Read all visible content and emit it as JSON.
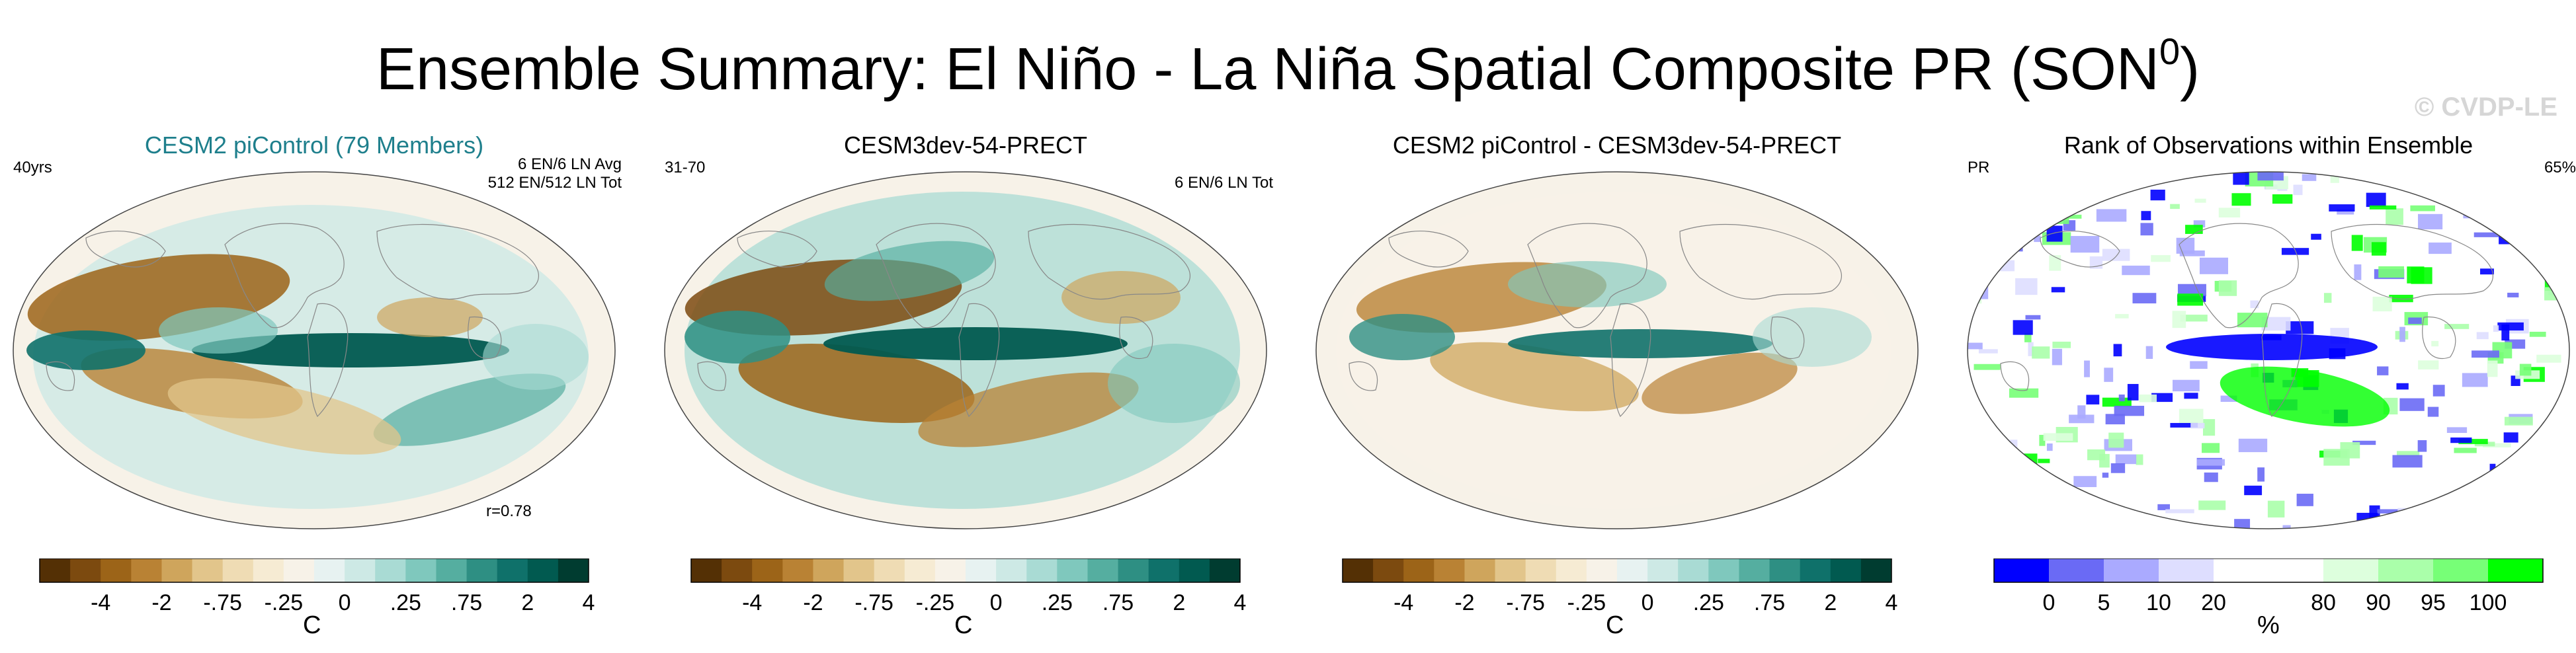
{
  "page": {
    "title": "Ensemble Summary: El Niño - La Niña Spatial Composite PR (SON",
    "title_sup": "0",
    "title_end": ")",
    "watermark": "© CVDP-LE"
  },
  "colors": {
    "brown_teal": [
      "#543005",
      "#7c4a0f",
      "#9c6418",
      "#b98234",
      "#cfa55c",
      "#e2c58b",
      "#efdcb4",
      "#f6ebd3",
      "#f7f2e8",
      "#e7f2f1",
      "#cde9e5",
      "#a9dbd4",
      "#7fc8bd",
      "#55aea0",
      "#2e8f83",
      "#0f716a",
      "#015a50",
      "#003c30"
    ],
    "rank": [
      "#0000ff",
      "#6a6af5",
      "#aaaaff",
      "#dedeff",
      "#ffffff",
      "#ffffff",
      "#ddffdd",
      "#aaffaa",
      "#77ff77",
      "#00ff00"
    ]
  },
  "panels": [
    {
      "title": "CESM2 piControl (79 Members)",
      "left_label": "40yrs",
      "right_label_1": "6 EN/6 LN Avg",
      "right_label_2": "512 EN/512 LN Tot",
      "bottom_label": "r=0.78",
      "colorbar_labels": [
        "-4",
        "-2",
        "-.75",
        "-.25",
        "0",
        ".25",
        ".75",
        "2",
        "4"
      ],
      "colorbar_unit": "C"
    },
    {
      "title": "CESM3dev-54-PRECT",
      "left_label": "31-70",
      "right_label_1": "6 EN/6 LN Tot",
      "colorbar_labels": [
        "-4",
        "-2",
        "-.75",
        "-.25",
        "0",
        ".25",
        ".75",
        "2",
        "4"
      ],
      "colorbar_unit": "C"
    },
    {
      "title": "CESM2 piControl - CESM3dev-54-PRECT",
      "colorbar_labels": [
        "-4",
        "-2",
        "-.75",
        "-.25",
        "0",
        ".25",
        ".75",
        "2",
        "4"
      ],
      "colorbar_unit": "C"
    },
    {
      "title": "Rank of Observations within Ensemble",
      "left_label": "PR",
      "right_label_1": "65%",
      "colorbar_labels": [
        "0",
        "5",
        "10",
        "20",
        "80",
        "90",
        "95",
        "100"
      ],
      "colorbar_unit": "%"
    }
  ],
  "chart_data": [
    {
      "type": "heatmap",
      "title": "CESM2 piControl (79 Members)",
      "colorbar_levels": [
        -4,
        -2,
        -0.75,
        -0.25,
        0,
        0.25,
        0.75,
        2,
        4
      ],
      "colorbar_unit": "C"
    },
    {
      "type": "heatmap",
      "title": "CESM3dev-54-PRECT",
      "colorbar_levels": [
        -4,
        -2,
        -0.75,
        -0.25,
        0,
        0.25,
        0.75,
        2,
        4
      ],
      "colorbar_unit": "C"
    },
    {
      "type": "heatmap",
      "title": "CESM2 piControl - CESM3dev-54-PRECT",
      "colorbar_levels": [
        -4,
        -2,
        -0.75,
        -0.25,
        0,
        0.25,
        0.75,
        2,
        4
      ],
      "colorbar_unit": "C"
    },
    {
      "type": "heatmap",
      "title": "Rank of Observations within Ensemble",
      "colorbar_levels": [
        0,
        5,
        10,
        20,
        80,
        90,
        95,
        100
      ],
      "colorbar_unit": "%"
    }
  ]
}
